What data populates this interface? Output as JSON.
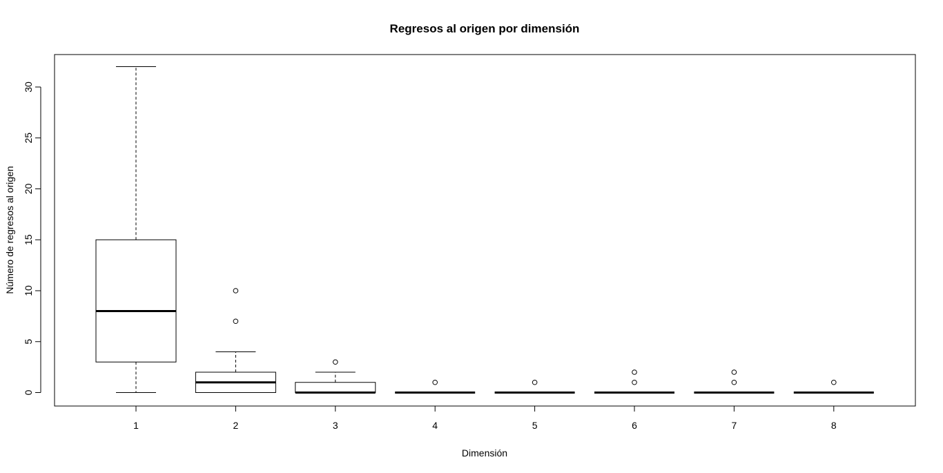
{
  "chart_data": {
    "type": "boxplot",
    "title": "Regresos al origen por dimensión",
    "xlabel": "Dimensión",
    "ylabel": "Número de regresos al origen",
    "ylim": [
      0,
      32
    ],
    "y_ticks": [
      0,
      5,
      10,
      15,
      20,
      25,
      30
    ],
    "grid": false,
    "legend": "none",
    "categories": [
      "1",
      "2",
      "3",
      "4",
      "5",
      "6",
      "7",
      "8"
    ],
    "boxes": [
      {
        "category": "1",
        "whisker_low": 0,
        "q1": 3,
        "median": 8,
        "q3": 15,
        "whisker_high": 32,
        "outliers": []
      },
      {
        "category": "2",
        "whisker_low": 0,
        "q1": 0,
        "median": 1,
        "q3": 2,
        "whisker_high": 4,
        "outliers": [
          7,
          10
        ]
      },
      {
        "category": "3",
        "whisker_low": 0,
        "q1": 0,
        "median": 0,
        "q3": 1,
        "whisker_high": 2,
        "outliers": [
          3
        ]
      },
      {
        "category": "4",
        "whisker_low": 0,
        "q1": 0,
        "median": 0,
        "q3": 0,
        "whisker_high": 0,
        "outliers": [
          1
        ]
      },
      {
        "category": "5",
        "whisker_low": 0,
        "q1": 0,
        "median": 0,
        "q3": 0,
        "whisker_high": 0,
        "outliers": [
          1
        ]
      },
      {
        "category": "6",
        "whisker_low": 0,
        "q1": 0,
        "median": 0,
        "q3": 0,
        "whisker_high": 0,
        "outliers": [
          1,
          2
        ]
      },
      {
        "category": "7",
        "whisker_low": 0,
        "q1": 0,
        "median": 0,
        "q3": 0,
        "whisker_high": 0,
        "outliers": [
          1,
          2
        ]
      },
      {
        "category": "8",
        "whisker_low": 0,
        "q1": 0,
        "median": 0,
        "q3": 0,
        "whisker_high": 0,
        "outliers": [
          1
        ]
      }
    ]
  }
}
